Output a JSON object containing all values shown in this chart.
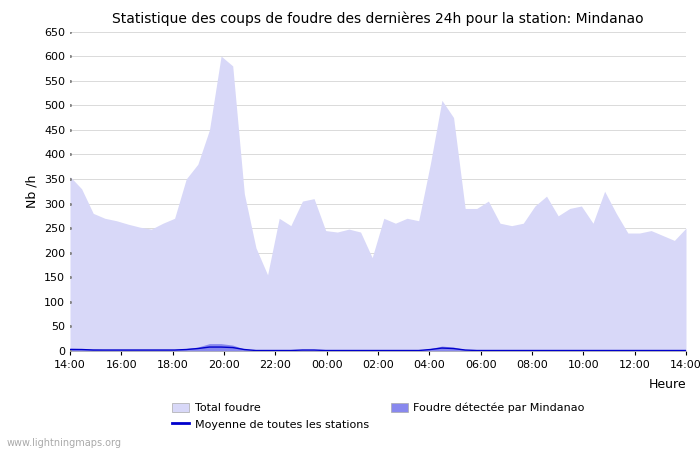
{
  "title": "Statistique des coups de foudre des dernières 24h pour la station: Mindanao",
  "xlabel": "Heure",
  "ylabel": "Nb /h",
  "ylim": [
    0,
    650
  ],
  "yticks": [
    0,
    50,
    100,
    150,
    200,
    250,
    300,
    350,
    400,
    450,
    500,
    550,
    600,
    650
  ],
  "x_labels": [
    "14:00",
    "16:00",
    "18:00",
    "20:00",
    "22:00",
    "00:00",
    "02:00",
    "04:00",
    "06:00",
    "08:00",
    "10:00",
    "12:00",
    "14:00"
  ],
  "total_foudre_color": "#d8d8f8",
  "detected_color": "#8888ee",
  "moyenne_color": "#0000cc",
  "background_color": "#ffffff",
  "grid_color": "#cccccc",
  "watermark": "www.lightningmaps.org",
  "total_foudre": [
    355,
    330,
    280,
    270,
    265,
    258,
    252,
    248,
    260,
    270,
    350,
    380,
    450,
    600,
    580,
    320,
    210,
    155,
    270,
    255,
    305,
    310,
    245,
    242,
    248,
    242,
    190,
    270,
    260,
    270,
    265,
    380,
    510,
    475,
    290,
    290,
    305,
    260,
    255,
    260,
    295,
    315,
    275,
    290,
    295,
    260,
    325,
    280,
    240,
    240,
    245,
    235,
    225,
    250
  ],
  "detected_foudre": [
    6,
    5,
    4,
    3,
    3,
    3,
    3,
    3,
    3,
    3,
    5,
    8,
    15,
    15,
    12,
    4,
    2,
    2,
    2,
    2,
    3,
    3,
    2,
    2,
    2,
    2,
    1,
    1,
    2,
    2,
    2,
    5,
    10,
    8,
    3,
    2,
    2,
    2,
    2,
    2,
    2,
    2,
    2,
    2,
    2,
    2,
    2,
    2,
    2,
    2,
    2,
    2,
    2,
    2
  ],
  "moyenne": [
    3,
    3,
    2,
    2,
    2,
    2,
    2,
    2,
    2,
    2,
    3,
    5,
    8,
    8,
    7,
    3,
    1,
    1,
    1,
    1,
    2,
    2,
    1,
    1,
    1,
    1,
    1,
    1,
    1,
    1,
    1,
    3,
    6,
    5,
    2,
    1,
    1,
    1,
    1,
    1,
    1,
    1,
    1,
    1,
    1,
    1,
    1,
    1,
    1,
    1,
    1,
    1,
    1,
    1
  ],
  "n_points": 54,
  "figwidth": 7.0,
  "figheight": 4.5,
  "dpi": 100
}
